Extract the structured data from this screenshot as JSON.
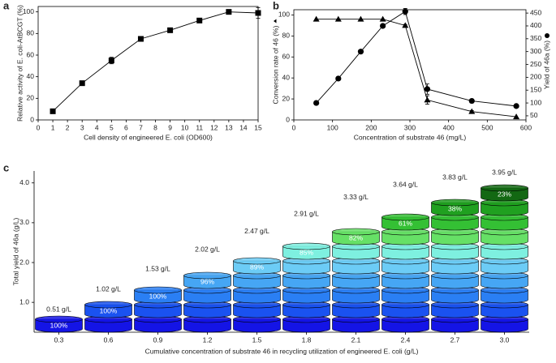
{
  "chart_data": [
    {
      "type": "line",
      "panel": "a",
      "ylabel": "Relative activity of E. coli-AtBCGT (%)",
      "xlabel": "Cell density of engineered E. coli (OD600)",
      "x": [
        1,
        3,
        5,
        7,
        9,
        11,
        13,
        15
      ],
      "series": [
        {
          "color": "#000000",
          "marker": "square",
          "axis": "y",
          "values": [
            8,
            34,
            55,
            75,
            83,
            92,
            100,
            99
          ],
          "errors": [
            1,
            2,
            3,
            2,
            1,
            1,
            2,
            5
          ]
        }
      ],
      "xlim": [
        0,
        15
      ],
      "xticks": [
        0,
        1,
        2,
        3,
        4,
        5,
        6,
        7,
        8,
        9,
        10,
        11,
        12,
        13,
        14,
        15
      ],
      "ylim": [
        0,
        105
      ],
      "yticks": [
        0,
        20,
        40,
        60,
        80,
        100
      ]
    },
    {
      "type": "line",
      "panel": "b",
      "ylabel": "Conversion rate of 46 (%)",
      "y2label": "Yield of 46a (%)",
      "xlabel": "Concentration of substrate 46 (mg/L)",
      "x": [
        58,
        115,
        173,
        230,
        288,
        345,
        460,
        575
      ],
      "series": [
        {
          "color": "#000000",
          "marker": "triangle",
          "axis": "y",
          "values": [
            96,
            96,
            96,
            96,
            90,
            19,
            8,
            3
          ],
          "errors": [
            0,
            0,
            0,
            0,
            1,
            4,
            1,
            0
          ]
        },
        {
          "color": "#000000",
          "marker": "circle",
          "axis": "y2",
          "values": [
            100,
            195,
            300,
            400,
            456,
            154,
            108,
            88
          ],
          "errors": [
            0,
            0,
            0,
            0,
            12,
            20,
            2,
            0
          ]
        }
      ],
      "xlim": [
        0,
        600
      ],
      "xticks": [
        0,
        100,
        200,
        300,
        400,
        500,
        600
      ],
      "ylim": [
        0,
        105
      ],
      "yticks": [
        0,
        20,
        40,
        60,
        80,
        100
      ],
      "y2lim": [
        34,
        463
      ],
      "y2ticks": [
        50,
        100,
        150,
        200,
        250,
        300,
        350,
        400,
        450
      ]
    },
    {
      "type": "stacked_cylinder",
      "panel": "c",
      "ylabel": "Total yield of 46a (g/L)",
      "xlabel": "Cumulative concentration of substrate 46 in recycling utilization of engineered E. coli  (g/L)",
      "categories": [
        "0.3",
        "0.6",
        "0.9",
        "1.2",
        "1.5",
        "1.8",
        "2.1",
        "2.4",
        "2.7",
        "3.0"
      ],
      "values": [
        0.51,
        1.02,
        1.53,
        2.02,
        2.47,
        2.91,
        3.33,
        3.64,
        3.83,
        3.95
      ],
      "value_labels": [
        "0.51 g/L",
        "1.02 g/L",
        "1.53 g/L",
        "2.02 g/L",
        "2.47 g/L",
        "2.91 g/L",
        "3.33 g/L",
        "3.64 g/L",
        "3.83 g/L",
        "3.95 g/L"
      ],
      "percent_labels": [
        "100%",
        "100%",
        "100%",
        "96%",
        "89%",
        "85%",
        "82%",
        "61%",
        "38%",
        "23%"
      ],
      "layer_colors": [
        "#1414e6",
        "#1a52f0",
        "#2a7ff4",
        "#46a6f4",
        "#6cccf6",
        "#7ef0e0",
        "#66e066",
        "#34c034",
        "#20a020",
        "#136813"
      ],
      "ylim": [
        0.25,
        4.3
      ],
      "yticks": [
        {
          "value": 1,
          "label": "1.0"
        },
        {
          "value": 2,
          "label": "2.0"
        },
        {
          "value": 3,
          "label": "3.0"
        },
        {
          "value": 4,
          "label": "4.0"
        }
      ]
    }
  ]
}
